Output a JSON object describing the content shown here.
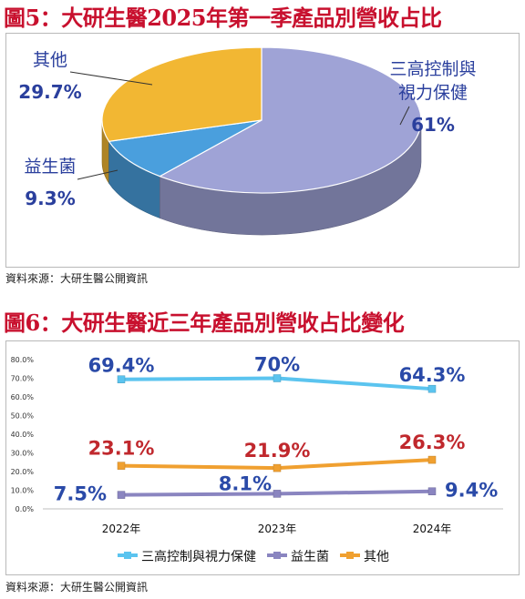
{
  "figure5": {
    "title": "圖5：大研生醫2025年第一季產品別營收占比",
    "source": "資料來源：大研生醫公開資訊"
  },
  "figure6": {
    "title": "圖6：大研生醫近三年產品別營收占比變化",
    "source": "資料來源：大研生醫公開資訊"
  },
  "chart_data": [
    {
      "type": "pie",
      "title": "圖5：大研生醫2025年第一季產品別營收占比",
      "labels": [
        "三高控制與視力保健",
        "益生菌",
        "其他"
      ],
      "values": [
        61,
        9.3,
        29.7
      ],
      "value_labels": [
        "61%",
        "9.3%",
        "29.7%"
      ],
      "colors": [
        "#9fa3d6",
        "#4a9fdd",
        "#f2b733"
      ],
      "style": "3d"
    },
    {
      "type": "line",
      "title": "圖6：大研生醫近三年產品別營收占比變化",
      "categories": [
        "2022年",
        "2023年",
        "2024年"
      ],
      "series": [
        {
          "name": "三高控制與視力保健",
          "values": [
            69.4,
            70,
            64.3
          ],
          "labels": [
            "69.4%",
            "70%",
            "64.3%"
          ],
          "color": "#5bc4ef",
          "label_color": "#2a4aa8"
        },
        {
          "name": "益生菌",
          "values": [
            7.5,
            8.1,
            9.4
          ],
          "labels": [
            "7.5%",
            "8.1%",
            "9.4%"
          ],
          "color": "#8a85c0",
          "label_color": "#2a4aa8"
        },
        {
          "name": "其他",
          "values": [
            23.1,
            21.9,
            26.3
          ],
          "labels": [
            "23.1%",
            "21.9%",
            "26.3%"
          ],
          "color": "#f0a030",
          "label_color": "#c0282d"
        }
      ],
      "yticks": [
        "0.0%",
        "10.0%",
        "20.0%",
        "30.0%",
        "40.0%",
        "50.0%",
        "60.0%",
        "70.0%",
        "80.0%"
      ],
      "ylim": [
        0,
        80
      ],
      "legend": "bottom",
      "grid": false
    }
  ]
}
